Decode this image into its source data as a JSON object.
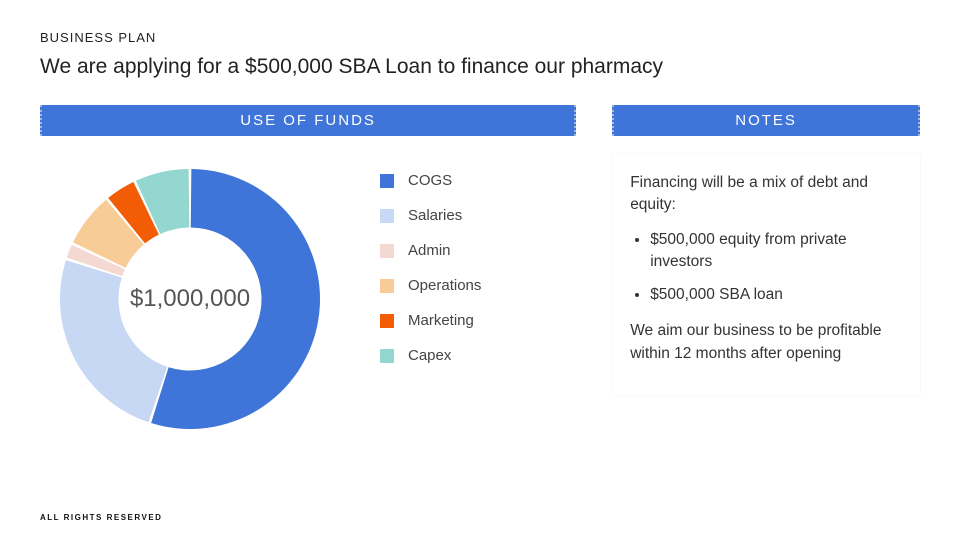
{
  "eyebrow": "BUSINESS PLAN",
  "headline": "We are applying for a $500,000 SBA Loan to finance our pharmacy",
  "left_panel_title": "USE OF FUNDS",
  "right_panel_title": "NOTES",
  "panel_header_bg": "#3f74d8",
  "panel_header_text_color": "#ffffff",
  "donut": {
    "type": "donut",
    "center_label": "$1,000,000",
    "center_fontsize": 24,
    "inner_ratio": 0.55,
    "gap_deg": 1.2,
    "background": "#ffffff",
    "slices": [
      {
        "label": "COGS",
        "value": 55,
        "color": "#3f74d8"
      },
      {
        "label": "Salaries",
        "value": 25,
        "color": "#c6d8f4"
      },
      {
        "label": "Admin",
        "value": 2,
        "color": "#f4d9d3"
      },
      {
        "label": "Operations",
        "value": 7,
        "color": "#f7cc96"
      },
      {
        "label": "Marketing",
        "value": 4,
        "color": "#f25c05"
      },
      {
        "label": "Capex",
        "value": 7,
        "color": "#94d6d0"
      }
    ]
  },
  "legend_label_fontsize": 15,
  "notes": {
    "intro": "Financing will be a mix of debt and equity:",
    "bullets": [
      "$500,000 equity from private investors",
      "$500,000 SBA loan"
    ],
    "closing": "We aim our business to be profitable within 12 months after opening"
  },
  "footer": "ALL RIGHTS RESERVED"
}
